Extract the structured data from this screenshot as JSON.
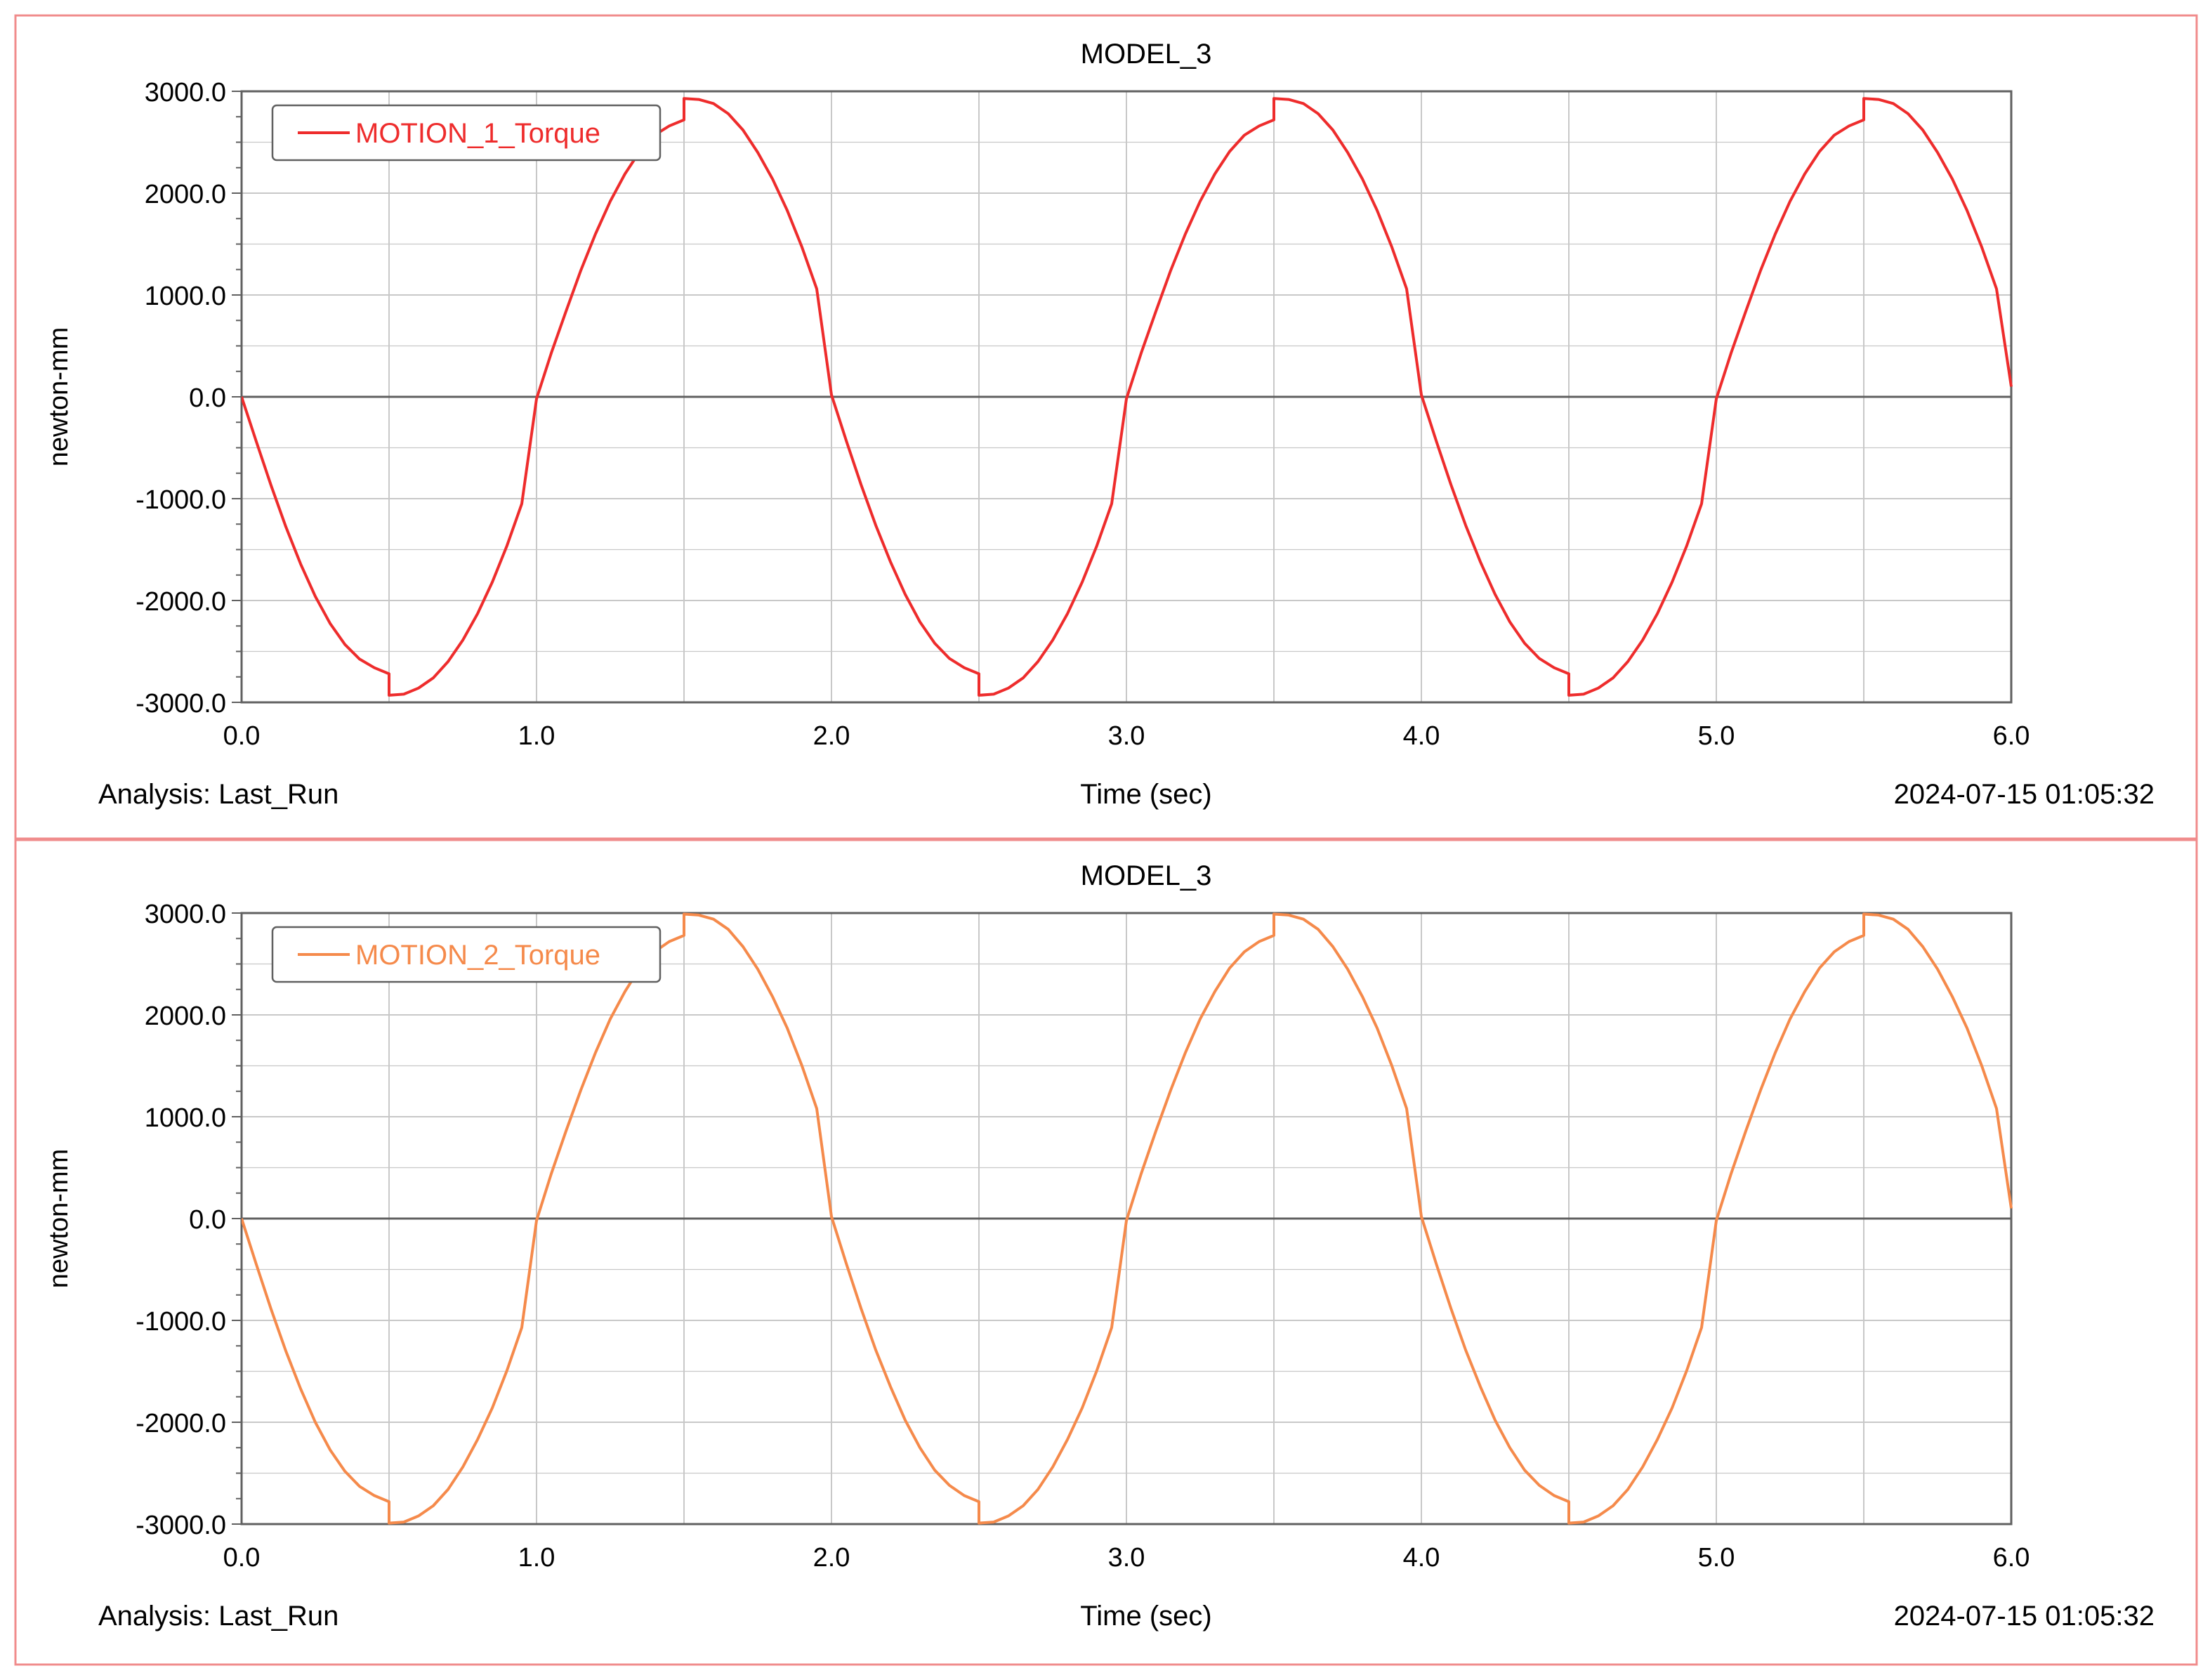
{
  "colors": {
    "frame": "#f08c8c",
    "grid": "#c8c8c8",
    "axis": "#606060",
    "text": "#000000",
    "background": "#ffffff"
  },
  "chart_data": [
    {
      "type": "line",
      "title": "MODEL_3",
      "xlabel": "Time (sec)",
      "ylabel": "newton-mm",
      "xlim": [
        0.0,
        6.0
      ],
      "ylim": [
        -3000.0,
        3000.0
      ],
      "x_ticks": [
        "0.0",
        "1.0",
        "2.0",
        "3.0",
        "4.0",
        "5.0",
        "6.0"
      ],
      "y_ticks": [
        "3000.0",
        "2000.0",
        "1000.0",
        "0.0",
        "-1000.0",
        "-2000.0",
        "-3000.0"
      ],
      "grid": true,
      "legend_position": "top-left",
      "footer_left": "Analysis:  Last_Run",
      "footer_right": "2024-07-15 01:05:32",
      "series": [
        {
          "name": "MOTION_1_Torque",
          "color": "#ee2c2c",
          "points": [
            [
              0.0,
              0
            ],
            [
              0.05,
              -440
            ],
            [
              0.1,
              -870
            ],
            [
              0.15,
              -1275
            ],
            [
              0.2,
              -1640
            ],
            [
              0.25,
              -1960
            ],
            [
              0.3,
              -2225
            ],
            [
              0.35,
              -2430
            ],
            [
              0.4,
              -2575
            ],
            [
              0.45,
              -2660
            ],
            [
              0.5,
              -2720
            ],
            [
              0.5,
              -2930
            ],
            [
              0.55,
              -2920
            ],
            [
              0.6,
              -2860
            ],
            [
              0.65,
              -2760
            ],
            [
              0.7,
              -2600
            ],
            [
              0.75,
              -2390
            ],
            [
              0.8,
              -2130
            ],
            [
              0.85,
              -1820
            ],
            [
              0.9,
              -1460
            ],
            [
              0.95,
              -1050
            ],
            [
              1.0,
              -20
            ],
            [
              1.05,
              430
            ],
            [
              1.1,
              840
            ],
            [
              1.15,
              1240
            ],
            [
              1.2,
              1600
            ],
            [
              1.25,
              1920
            ],
            [
              1.3,
              2190
            ],
            [
              1.35,
              2410
            ],
            [
              1.4,
              2570
            ],
            [
              1.45,
              2660
            ],
            [
              1.5,
              2720
            ],
            [
              1.5,
              2930
            ],
            [
              1.55,
              2920
            ],
            [
              1.6,
              2880
            ],
            [
              1.65,
              2780
            ],
            [
              1.7,
              2620
            ],
            [
              1.75,
              2400
            ],
            [
              1.8,
              2140
            ],
            [
              1.85,
              1830
            ],
            [
              1.9,
              1470
            ],
            [
              1.95,
              1060
            ],
            [
              2.0,
              20
            ],
            [
              2.05,
              -430
            ],
            [
              2.1,
              -860
            ],
            [
              2.15,
              -1260
            ],
            [
              2.2,
              -1620
            ],
            [
              2.25,
              -1940
            ],
            [
              2.3,
              -2210
            ],
            [
              2.35,
              -2420
            ],
            [
              2.4,
              -2570
            ],
            [
              2.45,
              -2660
            ],
            [
              2.5,
              -2720
            ],
            [
              2.5,
              -2930
            ],
            [
              2.55,
              -2920
            ],
            [
              2.6,
              -2860
            ],
            [
              2.65,
              -2760
            ],
            [
              2.7,
              -2600
            ],
            [
              2.75,
              -2390
            ],
            [
              2.8,
              -2130
            ],
            [
              2.85,
              -1820
            ],
            [
              2.9,
              -1460
            ],
            [
              2.95,
              -1050
            ],
            [
              3.0,
              -20
            ],
            [
              3.05,
              430
            ],
            [
              3.1,
              840
            ],
            [
              3.15,
              1240
            ],
            [
              3.2,
              1600
            ],
            [
              3.25,
              1920
            ],
            [
              3.3,
              2190
            ],
            [
              3.35,
              2410
            ],
            [
              3.4,
              2570
            ],
            [
              3.45,
              2660
            ],
            [
              3.5,
              2720
            ],
            [
              3.5,
              2930
            ],
            [
              3.55,
              2920
            ],
            [
              3.6,
              2880
            ],
            [
              3.65,
              2780
            ],
            [
              3.7,
              2620
            ],
            [
              3.75,
              2400
            ],
            [
              3.8,
              2140
            ],
            [
              3.85,
              1830
            ],
            [
              3.9,
              1470
            ],
            [
              3.95,
              1060
            ],
            [
              4.0,
              20
            ],
            [
              4.05,
              -430
            ],
            [
              4.1,
              -860
            ],
            [
              4.15,
              -1260
            ],
            [
              4.2,
              -1620
            ],
            [
              4.25,
              -1940
            ],
            [
              4.3,
              -2210
            ],
            [
              4.35,
              -2420
            ],
            [
              4.4,
              -2570
            ],
            [
              4.45,
              -2660
            ],
            [
              4.5,
              -2720
            ],
            [
              4.5,
              -2930
            ],
            [
              4.55,
              -2920
            ],
            [
              4.6,
              -2860
            ],
            [
              4.65,
              -2760
            ],
            [
              4.7,
              -2600
            ],
            [
              4.75,
              -2390
            ],
            [
              4.8,
              -2130
            ],
            [
              4.85,
              -1820
            ],
            [
              4.9,
              -1460
            ],
            [
              4.95,
              -1050
            ],
            [
              5.0,
              -20
            ],
            [
              5.05,
              430
            ],
            [
              5.1,
              840
            ],
            [
              5.15,
              1240
            ],
            [
              5.2,
              1600
            ],
            [
              5.25,
              1920
            ],
            [
              5.3,
              2190
            ],
            [
              5.35,
              2410
            ],
            [
              5.4,
              2570
            ],
            [
              5.45,
              2660
            ],
            [
              5.5,
              2720
            ],
            [
              5.5,
              2930
            ],
            [
              5.55,
              2920
            ],
            [
              5.6,
              2880
            ],
            [
              5.65,
              2780
            ],
            [
              5.7,
              2620
            ],
            [
              5.75,
              2400
            ],
            [
              5.8,
              2140
            ],
            [
              5.85,
              1830
            ],
            [
              5.9,
              1470
            ],
            [
              5.95,
              1060
            ],
            [
              6.0,
              100
            ]
          ]
        }
      ]
    },
    {
      "type": "line",
      "title": "MODEL_3",
      "xlabel": "Time (sec)",
      "ylabel": "newton-mm",
      "xlim": [
        0.0,
        6.0
      ],
      "ylim": [
        -3000.0,
        3000.0
      ],
      "x_ticks": [
        "0.0",
        "1.0",
        "2.0",
        "3.0",
        "4.0",
        "5.0",
        "6.0"
      ],
      "y_ticks": [
        "3000.0",
        "2000.0",
        "1000.0",
        "0.0",
        "-1000.0",
        "-2000.0",
        "-3000.0"
      ],
      "grid": true,
      "legend_position": "top-left",
      "footer_left": "Analysis:  Last_Run",
      "footer_right": "2024-07-15 01:05:32",
      "series": [
        {
          "name": "MOTION_2_Torque",
          "color": "#f58a4b",
          "points": [
            [
              0.0,
              0
            ],
            [
              0.05,
              -450
            ],
            [
              0.1,
              -890
            ],
            [
              0.15,
              -1300
            ],
            [
              0.2,
              -1670
            ],
            [
              0.25,
              -2000
            ],
            [
              0.3,
              -2270
            ],
            [
              0.35,
              -2480
            ],
            [
              0.4,
              -2630
            ],
            [
              0.45,
              -2720
            ],
            [
              0.5,
              -2780
            ],
            [
              0.5,
              -2990
            ],
            [
              0.55,
              -2980
            ],
            [
              0.6,
              -2920
            ],
            [
              0.65,
              -2820
            ],
            [
              0.7,
              -2660
            ],
            [
              0.75,
              -2440
            ],
            [
              0.8,
              -2170
            ],
            [
              0.85,
              -1860
            ],
            [
              0.9,
              -1490
            ],
            [
              0.95,
              -1070
            ],
            [
              1.0,
              -20
            ],
            [
              1.05,
              440
            ],
            [
              1.1,
              860
            ],
            [
              1.15,
              1260
            ],
            [
              1.2,
              1630
            ],
            [
              1.25,
              1960
            ],
            [
              1.3,
              2230
            ],
            [
              1.35,
              2460
            ],
            [
              1.4,
              2620
            ],
            [
              1.45,
              2720
            ],
            [
              1.5,
              2780
            ],
            [
              1.5,
              2990
            ],
            [
              1.55,
              2980
            ],
            [
              1.6,
              2940
            ],
            [
              1.65,
              2840
            ],
            [
              1.7,
              2670
            ],
            [
              1.75,
              2450
            ],
            [
              1.8,
              2180
            ],
            [
              1.85,
              1870
            ],
            [
              1.9,
              1500
            ],
            [
              1.95,
              1080
            ],
            [
              2.0,
              20
            ],
            [
              2.05,
              -440
            ],
            [
              2.1,
              -880
            ],
            [
              2.15,
              -1290
            ],
            [
              2.2,
              -1650
            ],
            [
              2.25,
              -1980
            ],
            [
              2.3,
              -2250
            ],
            [
              2.35,
              -2470
            ],
            [
              2.4,
              -2620
            ],
            [
              2.45,
              -2720
            ],
            [
              2.5,
              -2780
            ],
            [
              2.5,
              -2990
            ],
            [
              2.55,
              -2980
            ],
            [
              2.6,
              -2920
            ],
            [
              2.65,
              -2820
            ],
            [
              2.7,
              -2660
            ],
            [
              2.75,
              -2440
            ],
            [
              2.8,
              -2170
            ],
            [
              2.85,
              -1860
            ],
            [
              2.9,
              -1490
            ],
            [
              2.95,
              -1070
            ],
            [
              3.0,
              -20
            ],
            [
              3.05,
              440
            ],
            [
              3.1,
              860
            ],
            [
              3.15,
              1260
            ],
            [
              3.2,
              1630
            ],
            [
              3.25,
              1960
            ],
            [
              3.3,
              2230
            ],
            [
              3.35,
              2460
            ],
            [
              3.4,
              2620
            ],
            [
              3.45,
              2720
            ],
            [
              3.5,
              2780
            ],
            [
              3.5,
              2990
            ],
            [
              3.55,
              2980
            ],
            [
              3.6,
              2940
            ],
            [
              3.65,
              2840
            ],
            [
              3.7,
              2670
            ],
            [
              3.75,
              2450
            ],
            [
              3.8,
              2180
            ],
            [
              3.85,
              1870
            ],
            [
              3.9,
              1500
            ],
            [
              3.95,
              1080
            ],
            [
              4.0,
              20
            ],
            [
              4.05,
              -440
            ],
            [
              4.1,
              -880
            ],
            [
              4.15,
              -1290
            ],
            [
              4.2,
              -1650
            ],
            [
              4.25,
              -1980
            ],
            [
              4.3,
              -2250
            ],
            [
              4.35,
              -2470
            ],
            [
              4.4,
              -2620
            ],
            [
              4.45,
              -2720
            ],
            [
              4.5,
              -2780
            ],
            [
              4.5,
              -2990
            ],
            [
              4.55,
              -2980
            ],
            [
              4.6,
              -2920
            ],
            [
              4.65,
              -2820
            ],
            [
              4.7,
              -2660
            ],
            [
              4.75,
              -2440
            ],
            [
              4.8,
              -2170
            ],
            [
              4.85,
              -1860
            ],
            [
              4.9,
              -1490
            ],
            [
              4.95,
              -1070
            ],
            [
              5.0,
              -20
            ],
            [
              5.05,
              440
            ],
            [
              5.1,
              860
            ],
            [
              5.15,
              1260
            ],
            [
              5.2,
              1630
            ],
            [
              5.25,
              1960
            ],
            [
              5.3,
              2230
            ],
            [
              5.35,
              2460
            ],
            [
              5.4,
              2620
            ],
            [
              5.45,
              2720
            ],
            [
              5.5,
              2780
            ],
            [
              5.5,
              2990
            ],
            [
              5.55,
              2980
            ],
            [
              5.6,
              2940
            ],
            [
              5.65,
              2840
            ],
            [
              5.7,
              2670
            ],
            [
              5.75,
              2450
            ],
            [
              5.8,
              2180
            ],
            [
              5.85,
              1870
            ],
            [
              5.9,
              1500
            ],
            [
              5.95,
              1080
            ],
            [
              6.0,
              100
            ]
          ]
        }
      ]
    }
  ]
}
